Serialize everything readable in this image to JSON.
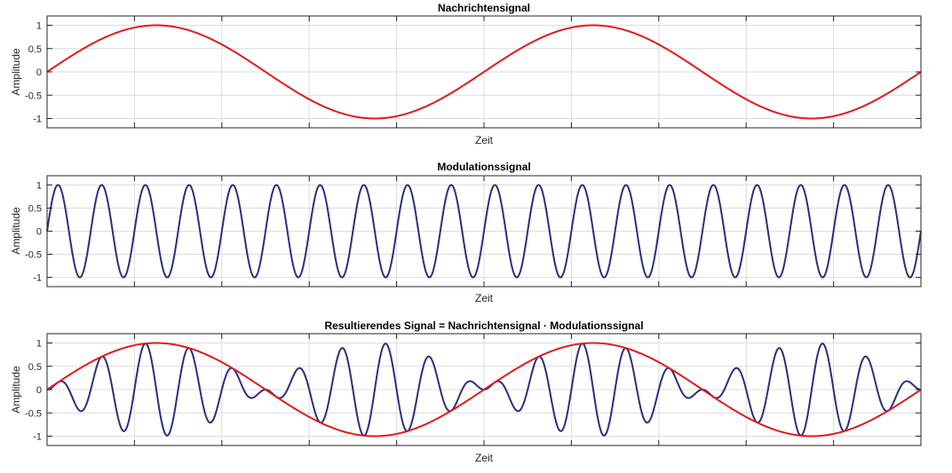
{
  "colors": {
    "message": "#e31a1c",
    "carrier": "#2b2f7d",
    "grid": "#dcdcdc",
    "axis": "#262626"
  },
  "chart_data": [
    {
      "type": "line",
      "title": "Nachrichtensignal",
      "xlabel": "Zeit",
      "ylabel": "Amplitude",
      "ylim": [
        -1.2,
        1.2
      ],
      "yticks": [
        1,
        0.5,
        0,
        -0.5,
        -1
      ],
      "ytick_labels": [
        "1",
        "0.5",
        "0",
        "-0.5",
        "-1"
      ],
      "xlim": [
        0,
        1
      ],
      "grid": true,
      "series": [
        {
          "color": "#e31a1c",
          "function": "sin",
          "cycles": 2,
          "amplitude": 1
        }
      ]
    },
    {
      "type": "line",
      "title": "Modulationssignal",
      "xlabel": "Zeit",
      "ylabel": "Amplitude",
      "ylim": [
        -1.2,
        1.2
      ],
      "yticks": [
        1,
        0.5,
        0,
        -0.5,
        -1
      ],
      "ytick_labels": [
        "1",
        "0.5",
        "0",
        "-0.5",
        "-1"
      ],
      "xlim": [
        0,
        1
      ],
      "grid": true,
      "series": [
        {
          "color": "#2b2f7d",
          "function": "sin",
          "cycles": 20,
          "amplitude": 1
        }
      ]
    },
    {
      "type": "line",
      "title": "Resultierendes Signal = Nachrichtensignal · Modulationssignal",
      "xlabel": "Zeit",
      "ylabel": "Amplitude",
      "ylim": [
        -1.2,
        1.2
      ],
      "yticks": [
        1,
        0.5,
        0,
        -0.5,
        -1
      ],
      "ytick_labels": [
        "1",
        "0.5",
        "0",
        "-0.5",
        "-1"
      ],
      "xlim": [
        0,
        1
      ],
      "grid": true,
      "series": [
        {
          "color": "#2b2f7d",
          "function": "product",
          "cycles_a": 2,
          "cycles_b": 20,
          "amplitude": 1
        },
        {
          "color": "#e31a1c",
          "function": "sin",
          "cycles": 2,
          "amplitude": 1
        }
      ]
    }
  ]
}
